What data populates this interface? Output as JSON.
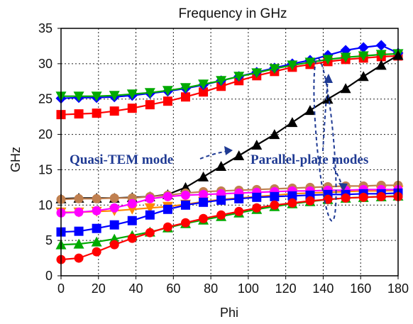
{
  "chart_data": {
    "type": "line",
    "title": "Frequency in GHz",
    "xlabel": "Phi",
    "ylabel": "GHz",
    "xlim": [
      0,
      180
    ],
    "ylim": [
      0,
      35
    ],
    "xticks": [
      0,
      20,
      40,
      60,
      80,
      100,
      120,
      140,
      160,
      180
    ],
    "yticks": [
      0,
      5,
      10,
      15,
      20,
      25,
      30,
      35
    ],
    "grid": true,
    "x": [
      0,
      9.5,
      19,
      28.5,
      38,
      47.5,
      57,
      66.5,
      76,
      85.5,
      95,
      104.5,
      114,
      123.5,
      133,
      142.5,
      152,
      161.5,
      171,
      180
    ],
    "series": [
      {
        "color": "#ff0000",
        "marker": "square",
        "values": [
          22.8,
          22.9,
          23.0,
          23.3,
          23.7,
          24.2,
          24.7,
          25.3,
          26.0,
          26.8,
          27.6,
          28.3,
          28.9,
          29.5,
          29.9,
          30.3,
          30.6,
          30.8,
          31.0,
          31.1
        ]
      },
      {
        "color": "#0000ff",
        "marker": "diamond",
        "values": [
          25.1,
          25.2,
          25.2,
          25.3,
          25.5,
          25.8,
          26.1,
          26.5,
          27.0,
          27.6,
          28.2,
          28.8,
          29.4,
          30.0,
          30.5,
          31.2,
          31.9,
          32.3,
          32.6,
          31.5
        ]
      },
      {
        "color": "#00aa00",
        "marker": "triangle-down",
        "values": [
          25.4,
          25.4,
          25.4,
          25.5,
          25.7,
          25.9,
          26.2,
          26.6,
          27.1,
          27.6,
          28.2,
          28.7,
          29.3,
          29.8,
          30.2,
          30.6,
          30.9,
          31.1,
          31.3,
          31.4
        ]
      },
      {
        "color": "#000000",
        "marker": "triangle",
        "values": [
          10.9,
          11.0,
          11.0,
          11.0,
          11.1,
          11.2,
          11.5,
          12.5,
          14.0,
          15.5,
          17.0,
          18.5,
          20.0,
          21.7,
          23.4,
          25.0,
          26.5,
          28.2,
          29.8,
          31.2
        ]
      },
      {
        "color": "#c08050",
        "marker": "circle",
        "values": [
          10.8,
          10.9,
          10.9,
          11.0,
          11.0,
          11.2,
          11.4,
          11.7,
          11.9,
          12.0,
          12.1,
          12.2,
          12.3,
          12.4,
          12.5,
          12.6,
          12.7,
          12.7,
          12.8,
          12.8
        ]
      },
      {
        "color": "#ff8800",
        "marker": "triangle-down",
        "values": [
          9.0,
          9.0,
          9.1,
          9.2,
          9.4,
          9.6,
          9.8,
          10.1,
          10.5,
          10.8,
          11.0,
          11.2,
          11.4,
          11.6,
          11.7,
          11.8,
          11.9,
          12.0,
          12.0,
          12.1
        ]
      },
      {
        "color": "#ff00ff",
        "marker": "circle",
        "values": [
          8.9,
          9.0,
          9.2,
          9.6,
          10.2,
          10.9,
          11.2,
          11.4,
          11.5,
          11.6,
          11.7,
          11.8,
          11.9,
          12.0,
          12.0,
          12.1,
          12.1,
          12.2,
          12.2,
          12.2
        ]
      },
      {
        "color": "#0000ff",
        "marker": "square",
        "values": [
          6.2,
          6.3,
          6.7,
          7.2,
          7.8,
          8.6,
          9.4,
          10.0,
          10.4,
          10.7,
          10.9,
          11.1,
          11.2,
          11.3,
          11.4,
          11.5,
          11.5,
          11.6,
          11.6,
          11.7
        ]
      },
      {
        "color": "#00aa00",
        "marker": "triangle",
        "values": [
          4.4,
          4.5,
          4.8,
          5.2,
          5.7,
          6.2,
          6.8,
          7.4,
          7.9,
          8.4,
          8.9,
          9.4,
          9.8,
          10.2,
          10.5,
          10.8,
          11.0,
          11.1,
          11.2,
          11.3
        ]
      },
      {
        "color": "#ff0000",
        "marker": "circle",
        "values": [
          2.3,
          2.5,
          3.4,
          4.4,
          5.3,
          6.1,
          6.9,
          7.5,
          8.1,
          8.6,
          9.1,
          9.6,
          10.0,
          10.3,
          10.6,
          10.8,
          11.0,
          11.1,
          11.2,
          11.2
        ]
      }
    ],
    "annotations": {
      "quasi_tem": "Quasi-TEM mode",
      "parallel_plate": "Parallel-plate modes"
    }
  }
}
